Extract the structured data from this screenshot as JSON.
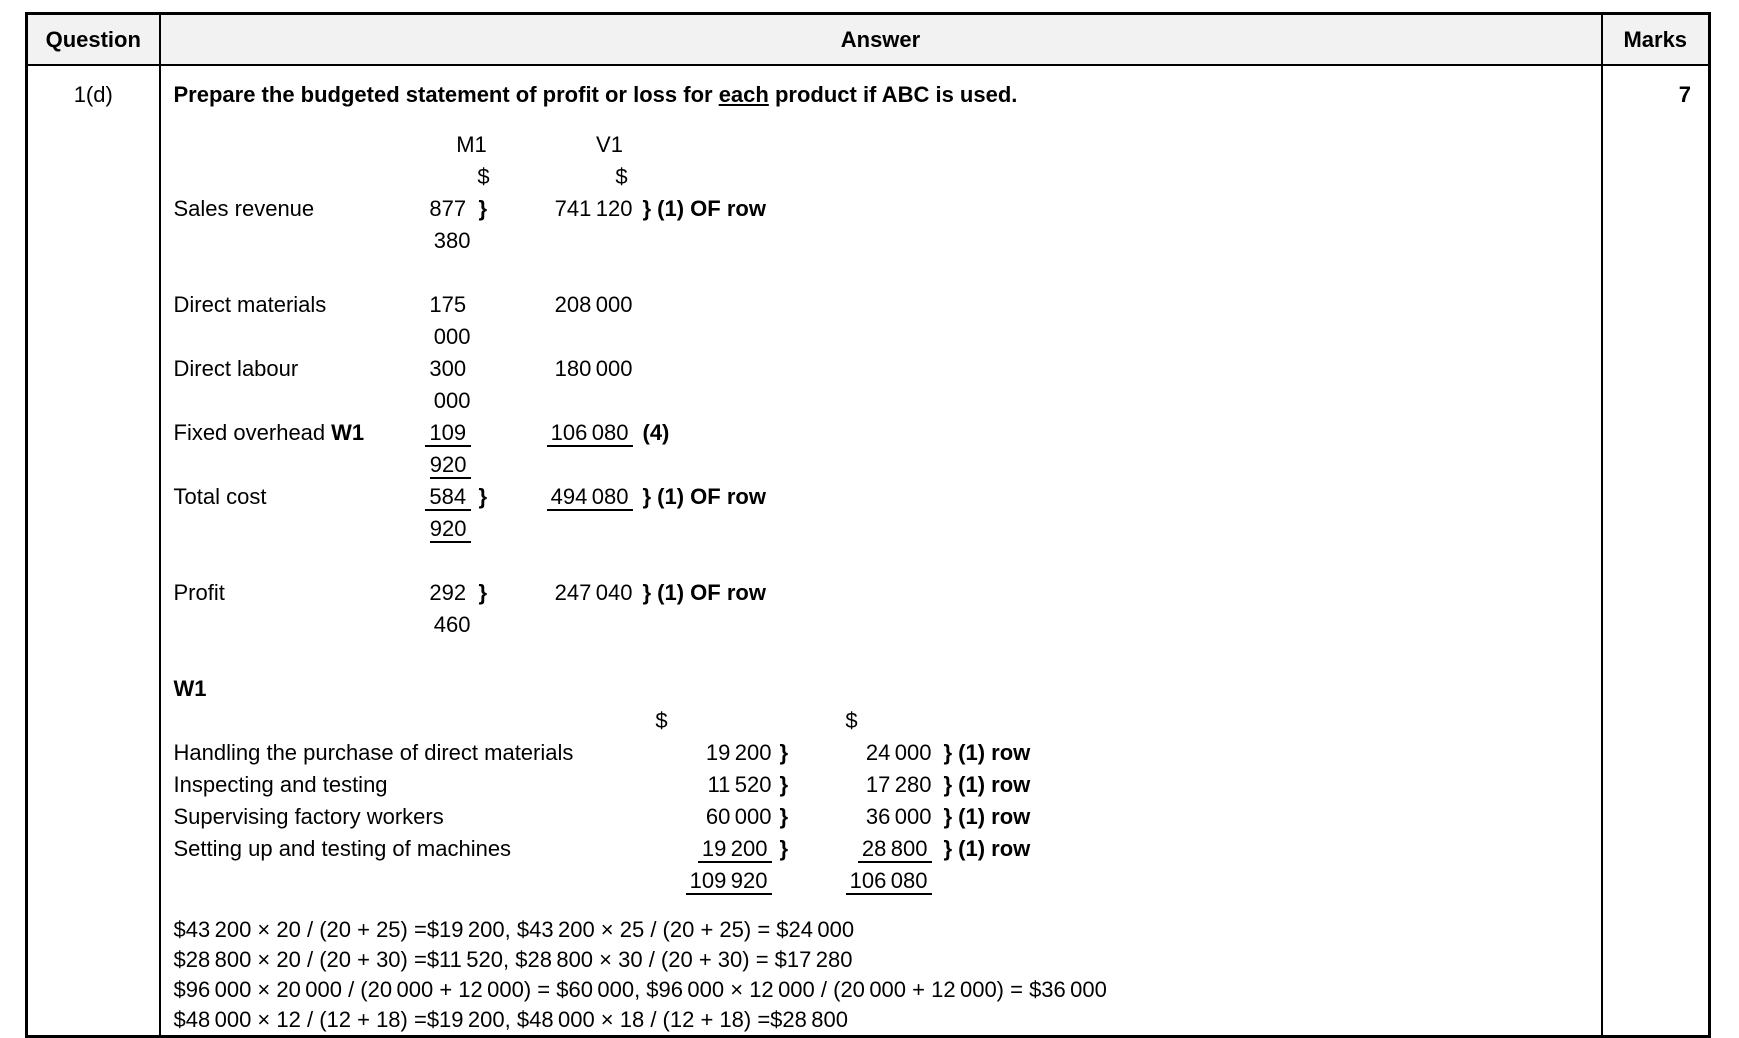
{
  "table_header": {
    "question": "Question",
    "answer": "Answer",
    "marks": "Marks"
  },
  "question": {
    "id": "1(d)",
    "marks": "7"
  },
  "answer": {
    "title": {
      "lead": "Prepare the budgeted statement of profit or loss for ",
      "underlined": "each",
      "tail": " product if ABC is used."
    },
    "statement": {
      "product_headers": {
        "m1": "M1",
        "v1": "V1"
      },
      "currency_headers": {
        "m1": "$",
        "v1": "$"
      },
      "rows": [
        {
          "label": "Sales revenue",
          "m1": "877 380",
          "m1_brace": "}",
          "v1": "741 120",
          "note": "} (1) OF row"
        },
        {
          "label": "Direct materials",
          "m1": "175 000",
          "m1_brace": "",
          "v1": "208 000",
          "note": ""
        },
        {
          "label": "Direct labour",
          "m1": "300 000",
          "m1_brace": "",
          "v1": "180 000",
          "note": ""
        },
        {
          "label": "Fixed overhead",
          "label_ref": "W1",
          "m1": "109 920",
          "m1_brace": "",
          "v1": "106 080",
          "note": "(4)"
        },
        {
          "label": "Total cost",
          "m1": "584 920",
          "m1_brace": "}",
          "v1": "494 080",
          "note": "} (1) OF row"
        },
        {
          "label": "Profit",
          "m1": "292 460",
          "m1_brace": "}",
          "v1": "247 040",
          "note": "} (1) OF row"
        }
      ]
    },
    "working": {
      "heading": "W1",
      "currency_headers": {
        "c1": "$",
        "c2": "$"
      },
      "rows": [
        {
          "label": "Handling the purchase of direct materials",
          "c1": "19 200",
          "brace1": "}",
          "c2": "24 000",
          "note": "} (1) row"
        },
        {
          "label": "Inspecting and testing",
          "c1": "11 520",
          "brace1": "}",
          "c2": "17 280",
          "note": "} (1) row"
        },
        {
          "label": "Supervising factory workers",
          "c1": "60 000",
          "brace1": "}",
          "c2": "36 000",
          "note": "} (1) row"
        },
        {
          "label": "Setting up and testing of machines",
          "c1": "19 200",
          "brace1": "}",
          "c2": "28 800",
          "note": "} (1) row"
        }
      ],
      "totals": {
        "c1": "109 920",
        "c2": "106 080"
      }
    },
    "calculations": [
      "$43 200 × 20 / (20 + 25) =$19 200, $43 200 × 25 / (20 + 25) = $24 000",
      "$28 800 × 20 / (20 + 30) =$11 520, $28 800 × 30 / (20 + 30) = $17 280",
      "$96 000 × 20 000 / (20 000 + 12 000) = $60 000, $96 000 × 12 000 / (20 000 + 12 000) = $36 000",
      "$48 000 × 12 / (12 + 18) =$19 200, $48 000 × 18 / (12 + 18) =$28 800"
    ]
  }
}
